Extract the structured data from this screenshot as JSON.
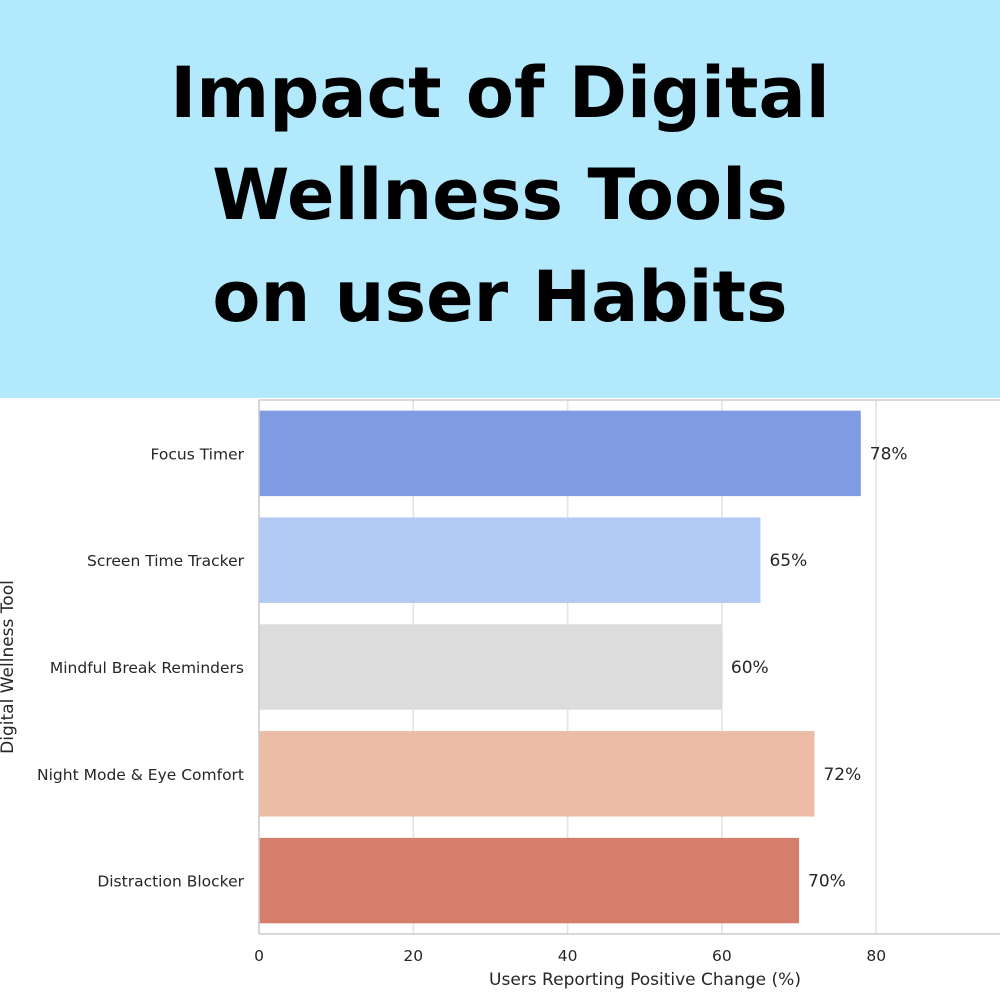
{
  "banner": {
    "title_lines": [
      "Impact of Digital",
      "Wellness Tools",
      "on user Habits"
    ],
    "background": "#b3e9fd"
  },
  "chart_data": {
    "type": "bar",
    "orientation": "horizontal",
    "categories": [
      "Focus Timer",
      "Screen Time Tracker",
      "Mindful Break Reminders",
      "Night Mode & Eye Comfort",
      "Distraction Blocker"
    ],
    "values": [
      78,
      65,
      60,
      72,
      70
    ],
    "value_labels": [
      "78%",
      "65%",
      "60%",
      "72%",
      "70%"
    ],
    "colors": [
      "#7f9be4",
      "#b2c9f3",
      "#dcdcdc",
      "#ecbca4",
      "#d67e6c"
    ],
    "xlabel": "Users Reporting Positive Change (%)",
    "ylabel": "Digital Wellness Tool",
    "xticks": [
      0,
      20,
      40,
      60,
      80
    ],
    "xlim": [
      0,
      96
    ],
    "grid": true
  }
}
